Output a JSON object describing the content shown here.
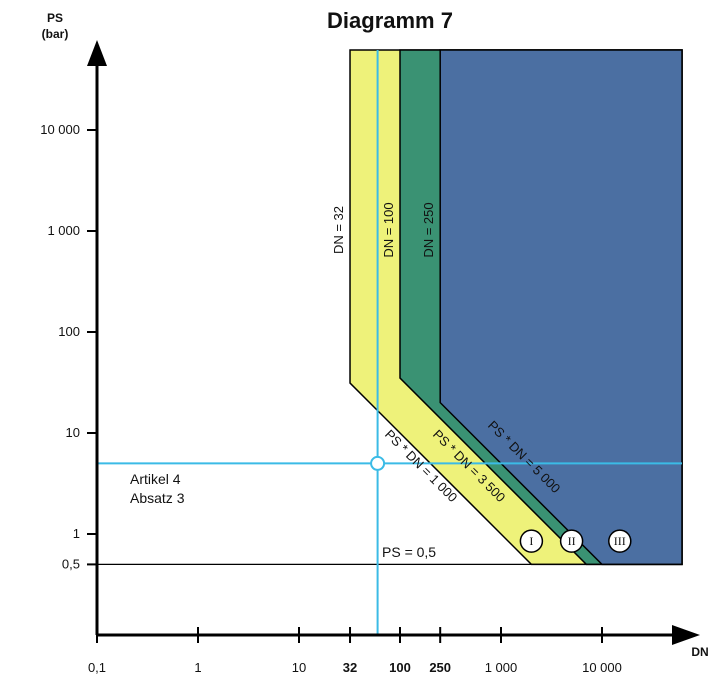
{
  "chart_data": {
    "type": "area",
    "title": "Diagramm 7",
    "xlabel": "DN",
    "ylabel_line1": "PS",
    "ylabel_line2": "(bar)",
    "x_scale": "log",
    "y_scale": "log",
    "xlim": [
      0.1,
      60000
    ],
    "ylim": [
      0.1,
      60000
    ],
    "x_ticks": [
      {
        "value": 0.1,
        "label": "0,1",
        "bold": false
      },
      {
        "value": 1,
        "label": "1",
        "bold": false
      },
      {
        "value": 10,
        "label": "10",
        "bold": false
      },
      {
        "value": 32,
        "label": "32",
        "bold": true
      },
      {
        "value": 100,
        "label": "100",
        "bold": true
      },
      {
        "value": 250,
        "label": "250",
        "bold": true
      },
      {
        "value": 1000,
        "label": "1 000",
        "bold": false
      },
      {
        "value": 10000,
        "label": "10 000",
        "bold": false
      }
    ],
    "y_ticks": [
      {
        "value": 0.5,
        "label": "0,5"
      },
      {
        "value": 1,
        "label": "1"
      },
      {
        "value": 10,
        "label": "10"
      },
      {
        "value": 100,
        "label": "100"
      },
      {
        "value": 1000,
        "label": "1 000"
      },
      {
        "value": 10000,
        "label": "10 000"
      }
    ],
    "regions": [
      {
        "name": "I",
        "color": "#eef27a",
        "x_vertical": 32,
        "ps_dn": 1000
      },
      {
        "name": "II",
        "color": "#3a9273",
        "x_vertical": 100,
        "ps_dn": 3500
      },
      {
        "name": "III",
        "color": "#4b6fa2",
        "x_vertical": 250,
        "ps_dn": 5000
      }
    ],
    "region_labels": [
      {
        "label": "I",
        "x": 2000,
        "y": 0.85
      },
      {
        "label": "II",
        "x": 5000,
        "y": 0.85
      },
      {
        "label": "III",
        "x": 15000,
        "y": 0.85
      }
    ],
    "boundary_labels": [
      {
        "text": "DN = 32",
        "x": 32,
        "y": 1000
      },
      {
        "text": "DN = 100",
        "x": 100,
        "y": 1000
      },
      {
        "text": "DN = 250",
        "x": 250,
        "y": 1000
      },
      {
        "text": "PS * DN = 1 000",
        "x": 200,
        "y": 5
      },
      {
        "text": "PS * DN = 3 500",
        "x": 700,
        "y": 5
      },
      {
        "text": "PS * DN = 5 000",
        "x": 1000,
        "y": 5
      }
    ],
    "ps_line": {
      "value": 0.5,
      "label": "PS = 0,5"
    },
    "example": {
      "x": 60,
      "y": 5,
      "label_line1": "Artikel 4",
      "label_line2": "Absatz 3"
    },
    "colors": {
      "highlight": "#3bbbe6",
      "axis": "#000000"
    }
  }
}
